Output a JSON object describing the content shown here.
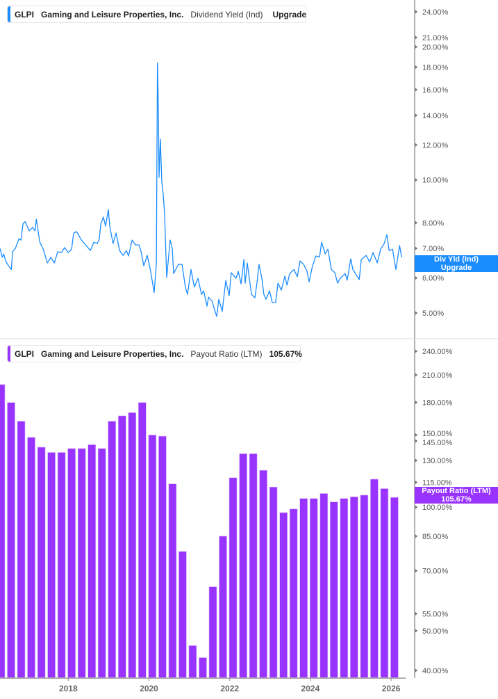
{
  "colors": {
    "dividend_yield": "#1a8cff",
    "payout_ratio": "#9933ff",
    "axis": "#b0b0b0"
  },
  "top_legend": {
    "ticker": "GLPI",
    "company": "Gaming and Leisure Properties, Inc.",
    "metric": "Dividend Yield (Ind)",
    "value": "Upgrade"
  },
  "top_tag": {
    "line1": "Div Yld (Ind)",
    "line2": "Upgrade"
  },
  "bottom_legend": {
    "ticker": "GLPI",
    "company": "Gaming and Leisure Properties, Inc.",
    "metric": "Payout Ratio (LTM)",
    "value": "105.67%"
  },
  "bottom_tag": {
    "line1": "Payout Ratio (LTM)",
    "line2": "105.67%"
  },
  "chart_data": [
    {
      "type": "line",
      "series_name": "Dividend Yield (Ind)",
      "y_scale": "log",
      "ylim": [
        4.8,
        25
      ],
      "y_ticks": [
        "24.00%",
        "21.00%",
        "20.00%",
        "18.00%",
        "16.00%",
        "14.00%",
        "12.00%",
        "10.00%",
        "8.00%",
        "7.00%",
        "6.00%",
        "5.00%"
      ],
      "y_tick_values": [
        24,
        21,
        20,
        18,
        16,
        14,
        12,
        10,
        8,
        7,
        6,
        5
      ],
      "x_ticks": [
        "2018",
        "2020",
        "2022",
        "2024",
        "2026"
      ],
      "grid": false,
      "legend": "top-left",
      "points": [
        [
          "2016-04-22",
          7.0
        ],
        [
          "2016-05-12",
          6.68
        ],
        [
          "2016-05-25",
          6.8
        ],
        [
          "2016-06-13",
          6.56
        ],
        [
          "2016-07-08",
          6.39
        ],
        [
          "2016-08-03",
          6.27
        ],
        [
          "2016-08-15",
          6.88
        ],
        [
          "2016-09-09",
          7.0
        ],
        [
          "2016-10-11",
          7.36
        ],
        [
          "2016-10-29",
          7.31
        ],
        [
          "2016-11-17",
          7.95
        ],
        [
          "2016-12-06",
          8.05
        ],
        [
          "2017-01-13",
          7.67
        ],
        [
          "2017-02-13",
          7.81
        ],
        [
          "2017-03-04",
          7.67
        ],
        [
          "2017-03-16",
          8.15
        ],
        [
          "2017-04-17",
          7.23
        ],
        [
          "2017-05-18",
          6.97
        ],
        [
          "2017-06-25",
          6.49
        ],
        [
          "2017-07-26",
          6.68
        ],
        [
          "2017-08-27",
          6.49
        ],
        [
          "2017-09-27",
          6.88
        ],
        [
          "2017-10-29",
          6.85
        ],
        [
          "2017-11-29",
          7.03
        ],
        [
          "2017-12-31",
          6.85
        ],
        [
          "2018-01-31",
          6.97
        ],
        [
          "2018-02-19",
          7.58
        ],
        [
          "2018-03-15",
          7.64
        ],
        [
          "2018-04-29",
          7.31
        ],
        [
          "2018-06-06",
          7.13
        ],
        [
          "2018-07-18",
          6.92
        ],
        [
          "2018-08-19",
          7.23
        ],
        [
          "2018-09-20",
          7.18
        ],
        [
          "2018-10-08",
          7.36
        ],
        [
          "2018-10-21",
          7.95
        ],
        [
          "2018-11-15",
          8.24
        ],
        [
          "2018-12-04",
          7.86
        ],
        [
          "2018-12-29",
          8.57
        ],
        [
          "2019-01-11",
          7.86
        ],
        [
          "2019-02-11",
          7.18
        ],
        [
          "2019-03-08",
          7.58
        ],
        [
          "2019-04-09",
          6.92
        ],
        [
          "2019-05-10",
          6.75
        ],
        [
          "2019-06-10",
          6.92
        ],
        [
          "2019-06-29",
          6.73
        ],
        [
          "2019-07-31",
          7.31
        ],
        [
          "2019-08-31",
          7.13
        ],
        [
          "2019-10-02",
          7.13
        ],
        [
          "2019-10-21",
          6.88
        ],
        [
          "2019-11-15",
          6.39
        ],
        [
          "2019-12-16",
          6.75
        ],
        [
          "2020-01-16",
          6.21
        ],
        [
          "2020-02-17",
          5.56
        ],
        [
          "2020-03-07",
          6.44
        ],
        [
          "2020-03-17",
          18.4
        ],
        [
          "2020-03-25",
          14.56
        ],
        [
          "2020-04-01",
          10.13
        ],
        [
          "2020-04-13",
          12.37
        ],
        [
          "2020-04-26",
          9.87
        ],
        [
          "2020-05-08",
          9.26
        ],
        [
          "2020-05-21",
          8.3
        ],
        [
          "2020-06-03",
          6.68
        ],
        [
          "2020-06-09",
          6.02
        ],
        [
          "2020-07-10",
          7.31
        ],
        [
          "2020-07-29",
          7.0
        ],
        [
          "2020-08-11",
          6.14
        ],
        [
          "2020-09-24",
          6.44
        ],
        [
          "2020-10-26",
          6.44
        ],
        [
          "2020-11-26",
          5.72
        ],
        [
          "2020-12-15",
          5.51
        ],
        [
          "2021-01-16",
          6.27
        ],
        [
          "2021-02-16",
          5.72
        ],
        [
          "2021-03-19",
          5.99
        ],
        [
          "2021-04-20",
          5.51
        ],
        [
          "2021-05-09",
          5.61
        ],
        [
          "2021-06-09",
          5.18
        ],
        [
          "2021-06-22",
          5.43
        ],
        [
          "2021-07-23",
          5.32
        ],
        [
          "2021-09-05",
          4.91
        ],
        [
          "2021-09-24",
          5.37
        ],
        [
          "2021-10-25",
          5.04
        ],
        [
          "2021-11-26",
          5.92
        ],
        [
          "2021-12-27",
          5.47
        ],
        [
          "2022-01-15",
          6.17
        ],
        [
          "2022-02-28",
          5.99
        ],
        [
          "2022-03-18",
          6.21
        ],
        [
          "2022-04-13",
          5.82
        ],
        [
          "2022-05-08",
          6.61
        ],
        [
          "2022-05-20",
          5.84
        ],
        [
          "2022-06-08",
          6.49
        ],
        [
          "2022-07-16",
          5.51
        ],
        [
          "2022-08-16",
          5.41
        ],
        [
          "2022-09-04",
          5.84
        ],
        [
          "2022-09-23",
          6.44
        ],
        [
          "2022-10-18",
          5.99
        ],
        [
          "2022-11-06",
          5.51
        ],
        [
          "2022-11-25",
          5.37
        ],
        [
          "2022-12-27",
          5.61
        ],
        [
          "2023-01-21",
          5.28
        ],
        [
          "2023-02-21",
          5.28
        ],
        [
          "2023-03-12",
          5.84
        ],
        [
          "2023-04-12",
          5.63
        ],
        [
          "2023-05-14",
          6.06
        ],
        [
          "2023-06-02",
          5.78
        ],
        [
          "2023-06-27",
          6.14
        ],
        [
          "2023-08-04",
          6.27
        ],
        [
          "2023-09-04",
          6.04
        ],
        [
          "2023-09-29",
          6.56
        ],
        [
          "2023-10-31",
          6.44
        ],
        [
          "2023-12-01",
          6.21
        ],
        [
          "2023-12-20",
          5.88
        ],
        [
          "2024-01-20",
          6.39
        ],
        [
          "2024-02-21",
          6.73
        ],
        [
          "2024-03-23",
          6.69
        ],
        [
          "2024-04-11",
          7.23
        ],
        [
          "2024-05-13",
          6.8
        ],
        [
          "2024-06-07",
          6.97
        ],
        [
          "2024-07-08",
          6.27
        ],
        [
          "2024-08-09",
          6.17
        ],
        [
          "2024-09-03",
          5.84
        ],
        [
          "2024-09-28",
          5.99
        ],
        [
          "2024-11-11",
          6.14
        ],
        [
          "2024-11-30",
          5.93
        ],
        [
          "2025-01-01",
          6.63
        ],
        [
          "2025-01-20",
          6.27
        ],
        [
          "2025-02-20",
          6.1
        ],
        [
          "2025-03-17",
          5.95
        ],
        [
          "2025-04-05",
          6.61
        ],
        [
          "2025-05-19",
          6.75
        ],
        [
          "2025-06-20",
          6.52
        ],
        [
          "2025-07-21",
          6.85
        ],
        [
          "2025-08-28",
          6.49
        ],
        [
          "2025-09-28",
          6.97
        ],
        [
          "2025-10-30",
          7.18
        ],
        [
          "2025-11-24",
          7.52
        ],
        [
          "2025-12-13",
          6.92
        ],
        [
          "2026-01-14",
          6.97
        ],
        [
          "2026-02-14",
          6.27
        ],
        [
          "2026-03-17",
          7.1
        ],
        [
          "2026-04-05",
          6.68
        ]
      ]
    },
    {
      "type": "bar",
      "series_name": "Payout Ratio (LTM)",
      "y_scale": "log",
      "ylim": [
        38,
        260
      ],
      "y_ticks": [
        "240.00%",
        "210.00%",
        "180.00%",
        "150.00%",
        "145.00%",
        "130.00%",
        "115.00%",
        "100.00%",
        "85.00%",
        "70.00%",
        "55.00%",
        "50.00%",
        "40.00%"
      ],
      "y_tick_values": [
        240,
        210,
        180,
        150,
        145,
        130,
        115,
        100,
        85,
        70,
        55,
        50,
        40
      ],
      "x_ticks": [
        "2018",
        "2020",
        "2022",
        "2024",
        "2026"
      ],
      "grid": false,
      "legend": "top-left",
      "categories": [
        "2016-04",
        "2016-07",
        "2016-10",
        "2017-01",
        "2017-04",
        "2017-07",
        "2017-10",
        "2018-01",
        "2018-04",
        "2018-07",
        "2018-10",
        "2019-01",
        "2019-04",
        "2019-07",
        "2019-10",
        "2020-01",
        "2020-04",
        "2020-07",
        "2020-10",
        "2021-01",
        "2021-04",
        "2021-07",
        "2021-10",
        "2022-01",
        "2022-04",
        "2022-07",
        "2022-10",
        "2023-01",
        "2023-04",
        "2023-07",
        "2023-10",
        "2024-01",
        "2024-04",
        "2024-07",
        "2024-10",
        "2025-01",
        "2025-04",
        "2025-07",
        "2025-10",
        "2026-01"
      ],
      "values": [
        199,
        180,
        162,
        148,
        140,
        136,
        136,
        139,
        139,
        142,
        139,
        162,
        167,
        170,
        180,
        150,
        149,
        114,
        78,
        46,
        43,
        64,
        85,
        118,
        135,
        135,
        123,
        112,
        97,
        99,
        105,
        105,
        108,
        103,
        105,
        106,
        107,
        117,
        111,
        105.67
      ]
    }
  ]
}
